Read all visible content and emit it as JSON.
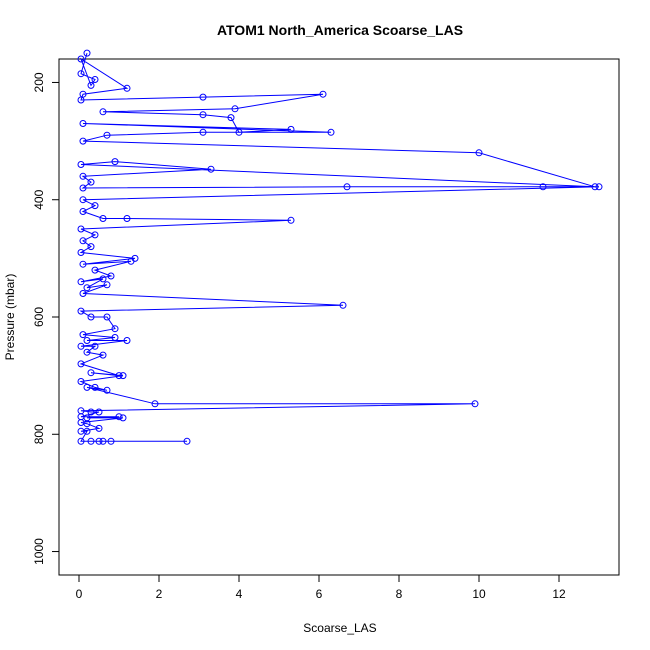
{
  "chart_data": {
    "type": "line",
    "title": "ATOM1 North_America Scoarse_LAS",
    "xlabel": "Scoarse_LAS",
    "ylabel": "Pressure (mbar)",
    "xlim": [
      -0.5,
      13.5
    ],
    "ylim": [
      1040,
      160
    ],
    "y_inverted": true,
    "x_ticks": [
      0,
      2,
      4,
      6,
      8,
      10,
      12
    ],
    "y_ticks": [
      200,
      400,
      600,
      800,
      1000
    ],
    "grid": false,
    "legend": "none",
    "marker": "open-circle",
    "color": "#0000ff",
    "series": [
      {
        "x": [
          0.2,
          0.05,
          0.4,
          0.3,
          0.05,
          1.2,
          0.1,
          0.05,
          3.1,
          6.1,
          3.9,
          0.6,
          3.1,
          3.8,
          4,
          5.3,
          0.1,
          6.3,
          3.1,
          0.7,
          0.1,
          10,
          12.9,
          0.05,
          0.9,
          3.3,
          0.1,
          0.3,
          0.1,
          6.7,
          11.6,
          13,
          0.1,
          0.4,
          0.1,
          0.6,
          1.2,
          5.3,
          0.05,
          0.4,
          0.1,
          0.3,
          0.05,
          1.4,
          0.1,
          1.3,
          0.4,
          0.8,
          0.05,
          0.6,
          0.2,
          0.7,
          0.1,
          6.6,
          0.05,
          0.3,
          0.7,
          0.9,
          0.1,
          0.9,
          0.2,
          1.2,
          0.05,
          0.4,
          0.2,
          0.6,
          0.05,
          1,
          0.3,
          1.1,
          0.05,
          0.4,
          0.7,
          0.2,
          1.9,
          9.9,
          0.05,
          0.3,
          0.5,
          0.05,
          1,
          0.2,
          1.1,
          0.05,
          0.2,
          0.5,
          0.05,
          0.2,
          0.05,
          0.3,
          0.5,
          0.6,
          0.8,
          2.7
        ],
        "y": [
          150,
          185,
          195,
          205,
          160,
          210,
          220,
          230,
          225,
          220,
          245,
          250,
          255,
          260,
          285,
          280,
          270,
          285,
          285,
          290,
          300,
          320,
          378,
          340,
          335,
          348,
          360,
          370,
          380,
          378,
          378,
          378,
          400,
          410,
          420,
          432,
          432,
          435,
          450,
          460,
          470,
          480,
          490,
          500,
          510,
          505,
          520,
          530,
          540,
          535,
          550,
          545,
          560,
          580,
          590,
          600,
          600,
          620,
          630,
          635,
          640,
          640,
          650,
          650,
          660,
          665,
          680,
          700,
          695,
          700,
          710,
          720,
          725,
          720,
          748,
          748,
          760,
          762,
          762,
          770,
          770,
          772,
          772,
          780,
          782,
          790,
          795,
          795,
          812,
          812,
          812,
          812,
          812,
          812
        ]
      }
    ]
  }
}
